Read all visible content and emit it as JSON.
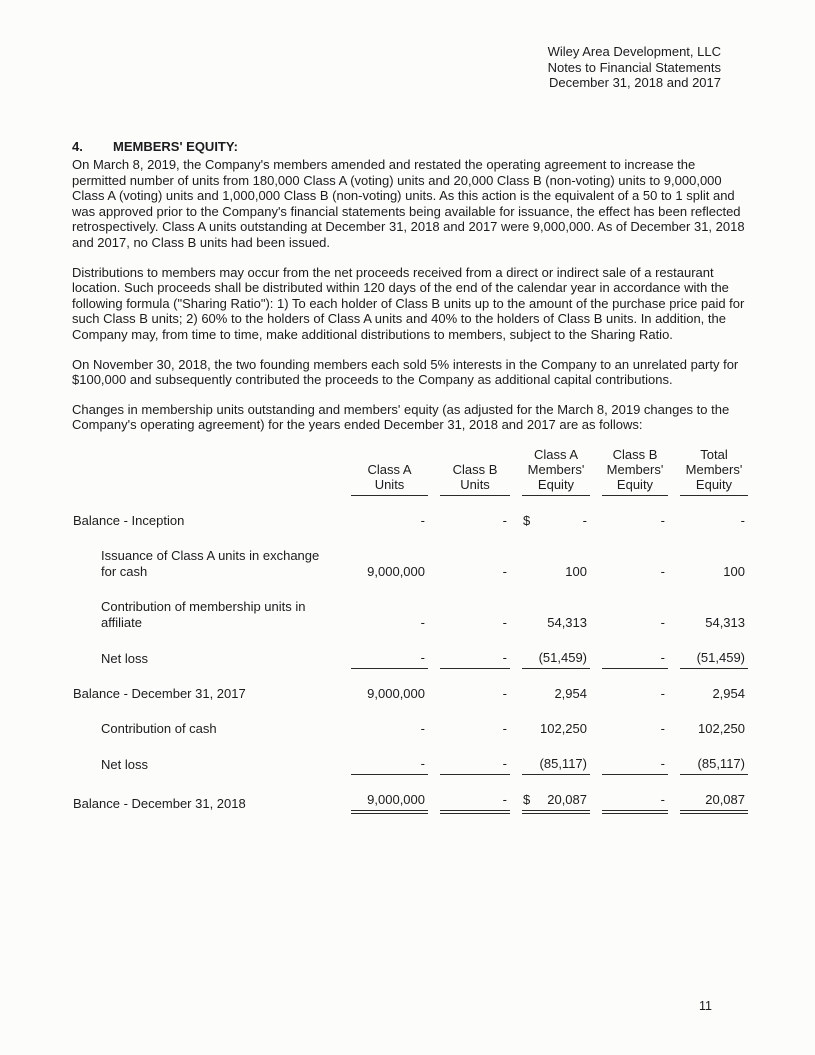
{
  "colors": {
    "ink": "#1c1c1c",
    "paper": "#fcfcfb"
  },
  "header": {
    "company": "Wiley Area Development, LLC",
    "doc_title": "Notes to Financial Statements",
    "date_line": "December 31, 2018 and 2017"
  },
  "section": {
    "number": "4.",
    "title": "MEMBERS' EQUITY:"
  },
  "paragraphs": [
    "On March 8, 2019, the Company's members amended and restated the operating agreement to increase the permitted number of units from 180,000 Class A (voting) units and 20,000 Class B (non-voting) units to 9,000,000 Class A (voting) units and 1,000,000 Class B (non-voting) units. As this action is the equivalent of a 50 to 1 split and was approved prior to the Company's financial statements being available for issuance, the effect has been reflected retrospectively. Class A units outstanding at December 31, 2018 and 2017 were 9,000,000. As of December 31, 2018 and 2017, no Class B units had been issued.",
    "Distributions to members may occur from the net proceeds received from a direct or indirect sale of a restaurant location. Such proceeds shall be distributed within 120 days of the end of the calendar year in accordance with the following formula (\"Sharing Ratio\"): 1) To each holder of Class B units up to the amount of the purchase price paid for such Class B units; 2) 60% to the holders of Class A units and 40% to the holders of Class B units. In addition, the Company may, from time to time, make additional distributions to members, subject to the Sharing Ratio.",
    "On November 30, 2018, the two founding members each sold 5% interests in the Company to an unrelated party for $100,000 and subsequently contributed the proceeds to the Company as additional capital contributions.",
    "Changes in membership units outstanding and members' equity (as adjusted for the March 8, 2019 changes to the Company's operating agreement) for the years ended December 31, 2018 and 2017 are as follows:"
  ],
  "table": {
    "headers": [
      {
        "lines": [
          "Class A",
          "Units"
        ]
      },
      {
        "lines": [
          "Class B",
          "Units"
        ]
      },
      {
        "lines": [
          "Class A",
          "Members'",
          "Equity"
        ]
      },
      {
        "lines": [
          "Class B",
          "Members'",
          "Equity"
        ]
      },
      {
        "lines": [
          "Total",
          "Members'",
          "Equity"
        ]
      }
    ],
    "rows": [
      {
        "label": "Balance - Inception",
        "label2": null,
        "indent": false,
        "values": [
          "-",
          "-",
          "-",
          "-",
          "-"
        ],
        "dollar_col": 2,
        "rule": "none"
      },
      {
        "label": "Issuance of Class A units in exchange",
        "label2": "for cash",
        "indent": true,
        "values": [
          "9,000,000",
          "-",
          "100",
          "-",
          "100"
        ],
        "dollar_col": -1,
        "rule": "none"
      },
      {
        "label": "Contribution of membership units in",
        "label2": "affiliate",
        "indent": true,
        "values": [
          "-",
          "-",
          "54,313",
          "-",
          "54,313"
        ],
        "dollar_col": -1,
        "rule": "none"
      },
      {
        "label": "Net loss",
        "label2": null,
        "indent": true,
        "values": [
          "-",
          "-",
          "(51,459)",
          "-",
          "(51,459)"
        ],
        "dollar_col": -1,
        "rule": "single"
      },
      {
        "label": "Balance - December 31, 2017",
        "label2": null,
        "indent": false,
        "values": [
          "9,000,000",
          "-",
          "2,954",
          "-",
          "2,954"
        ],
        "dollar_col": -1,
        "rule": "none"
      },
      {
        "label": "Contribution of cash",
        "label2": null,
        "indent": true,
        "values": [
          "-",
          "-",
          "102,250",
          "-",
          "102,250"
        ],
        "dollar_col": -1,
        "rule": "none"
      },
      {
        "label": "Net loss",
        "label2": null,
        "indent": true,
        "values": [
          "-",
          "-",
          "(85,117)",
          "-",
          "(85,117)"
        ],
        "dollar_col": -1,
        "rule": "single"
      },
      {
        "label": "Balance - December 31, 2018",
        "label2": null,
        "indent": false,
        "values": [
          "9,000,000",
          "-",
          "20,087",
          "-",
          "20,087"
        ],
        "dollar_col": 2,
        "rule": "double"
      }
    ]
  },
  "footer": {
    "page_number": "11"
  }
}
